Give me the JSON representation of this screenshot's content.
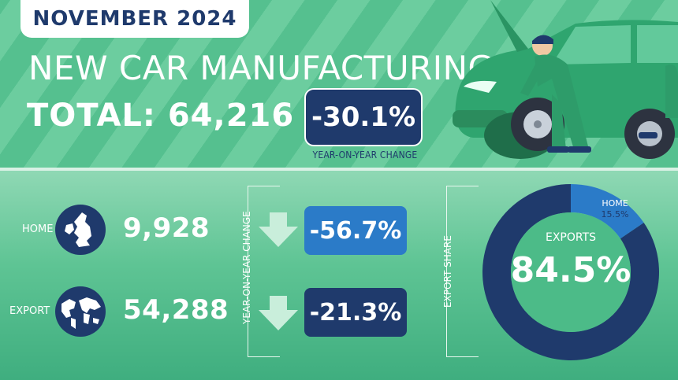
{
  "header": {
    "month": "NOVEMBER 2024",
    "title": "NEW CAR MANUFACTURING",
    "total_label": "TOTAL: 64,216",
    "total_change": "-30.1%",
    "total_change_caption": "YEAR-ON-YEAR CHANGE"
  },
  "rows": {
    "home": {
      "label": "HOME",
      "value": "9,928",
      "change": "-56.7%"
    },
    "export": {
      "label": "EXPORT",
      "value": "54,288",
      "change": "-21.3%"
    }
  },
  "side_labels": {
    "yoy": "YEAR-ON-YEAR CHANGE",
    "share": "EXPORT SHARE"
  },
  "colors": {
    "navy": "#1f3a6c",
    "blue": "#2b7bc8",
    "green": "#3fae7f"
  },
  "icons": {
    "home": "uk-map-icon",
    "export": "world-map-icon",
    "down": "down-arrow-icon"
  },
  "chart_data": {
    "type": "pie",
    "categories": [
      "EXPORTS",
      "HOME"
    ],
    "values": [
      84.5,
      15.5
    ],
    "labels": [
      "84.5%",
      "15.5%"
    ],
    "center_label": "EXPORTS",
    "center_value": "84.5%",
    "colors": [
      "#1f3a6c",
      "#2b7bc8"
    ]
  }
}
